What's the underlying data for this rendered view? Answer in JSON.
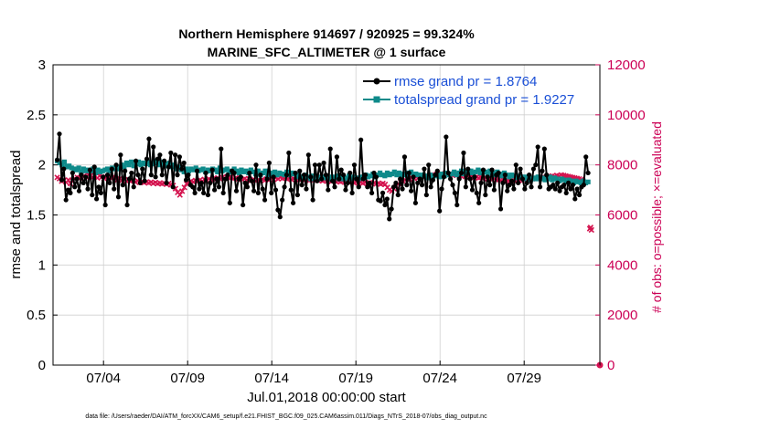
{
  "chart_data": {
    "type": "line",
    "title": "Northern Hemisphere 914697 / 920925 = 99.324%",
    "subtitle": "MARINE_SFC_ALTIMETER @ 1 surface",
    "xlabel": "Jul.01,2018 00:00:00 start",
    "ylabel": "rmse and totalspread",
    "y2label": "# of obs: o=possible; ×=evaluated",
    "xlim": [
      1,
      33.5
    ],
    "ylim": [
      0,
      3
    ],
    "y2lim": [
      0,
      12000
    ],
    "x_ticks": [
      4,
      9,
      14,
      19,
      24,
      29
    ],
    "x_tick_labels": [
      "07/04",
      "07/09",
      "07/14",
      "07/19",
      "07/24",
      "07/29"
    ],
    "y_ticks": [
      0,
      0.5,
      1,
      1.5,
      2,
      2.5,
      3
    ],
    "y_tick_labels": [
      "0",
      "0.5",
      "1",
      "1.5",
      "2",
      "2.5",
      "3"
    ],
    "y2_ticks": [
      0,
      2000,
      4000,
      6000,
      8000,
      10000,
      12000
    ],
    "y2_tick_labels": [
      "0",
      "2000",
      "4000",
      "6000",
      "8000",
      "10000",
      "12000"
    ],
    "grid": true,
    "legend_position": "top-right",
    "series": [
      {
        "name": "rmse grand pr = 1.8764",
        "color": "#000000",
        "marker": "filled-circle",
        "values": [
          2.05,
          2.31,
          1.85,
          1.96,
          1.65,
          1.75,
          1.72,
          1.92,
          1.78,
          1.86,
          1.74,
          1.9,
          1.82,
          1.88,
          1.76,
          1.95,
          1.7,
          1.98,
          1.66,
          1.78,
          1.72,
          1.88,
          1.6,
          1.9,
          1.82,
          1.96,
          1.76,
          2.0,
          1.68,
          2.1,
          1.8,
          1.94,
          1.6,
          1.86,
          1.92,
          1.78,
          2.04,
          1.9,
          1.82,
          1.96,
          1.84,
          2.06,
          2.26,
          1.9,
          2.18,
          1.88,
          2.06,
          2.1,
          1.9,
          2.04,
          1.82,
          1.98,
          2.12,
          1.78,
          2.1,
          1.9,
          2.08,
          1.96,
          2.02,
          1.85,
          1.9,
          1.8,
          1.78,
          1.72,
          1.94,
          1.76,
          1.82,
          1.72,
          1.92,
          1.7,
          1.82,
          1.95,
          1.75,
          1.86,
          1.78,
          2.16,
          1.72,
          1.86,
          1.9,
          1.62,
          1.94,
          1.92,
          1.74,
          1.86,
          1.88,
          1.6,
          1.82,
          1.78,
          1.92,
          1.84,
          1.74,
          2.0,
          1.72,
          1.9,
          1.76,
          1.65,
          1.86,
          2.02,
          1.72,
          1.88,
          1.75,
          1.55,
          1.48,
          1.65,
          1.78,
          1.9,
          2.12,
          1.75,
          1.62,
          1.92,
          1.7,
          1.94,
          1.8,
          1.9,
          1.76,
          2.1,
          1.88,
          1.65,
          2.0,
          1.84,
          2.0,
          1.86,
          2.02,
          1.9,
          1.75,
          2.16,
          1.84,
          1.78,
          2.08,
          1.86,
          1.95,
          1.9,
          1.75,
          1.82,
          1.92,
          1.72,
          2.0,
          1.86,
          1.78,
          2.25,
          1.86,
          1.9,
          1.78,
          1.82,
          1.72,
          1.92,
          1.88,
          1.65,
          1.64,
          1.72,
          1.6,
          1.66,
          1.46,
          1.56,
          1.78,
          1.82,
          1.7,
          1.86,
          1.76,
          2.08,
          1.8,
          1.92,
          1.74,
          1.88,
          1.62,
          1.82,
          1.86,
          1.8,
          1.96,
          1.7,
          2.0,
          1.78,
          1.85,
          1.9,
          1.94,
          1.54,
          1.76,
          1.88,
          2.28,
          1.92,
          1.86,
          1.8,
          1.72,
          1.6,
          1.86,
          1.92,
          2.12,
          1.78,
          1.96,
          1.86,
          1.75,
          1.88,
          1.72,
          1.62,
          1.82,
          1.95,
          1.7,
          1.88,
          1.8,
          1.95,
          1.75,
          1.9,
          1.92,
          1.56,
          1.82,
          1.9,
          1.74,
          1.8,
          1.84,
          1.76,
          2.0,
          1.82,
          1.96,
          1.86,
          1.76,
          1.82,
          1.9,
          1.78,
          1.96,
          2.0,
          2.18,
          1.78,
          1.94,
          2.16,
          1.9,
          1.76,
          1.78,
          1.8,
          1.76,
          1.82,
          1.74,
          1.78,
          1.8,
          1.72,
          1.82,
          1.76,
          1.8,
          1.66,
          1.76,
          1.7,
          1.78,
          1.8,
          2.08,
          1.92
        ]
      },
      {
        "name": "totalspread grand pr = 1.9227",
        "color": "#0e8a8a",
        "marker": "filled-square",
        "values": [
          2.04,
          2.02,
          2.0,
          2.03,
          1.98,
          1.99,
          1.97,
          1.96,
          1.95,
          1.97,
          1.93,
          1.96,
          1.94,
          1.95,
          1.94,
          1.96,
          1.92,
          1.95,
          1.93,
          1.94,
          1.95,
          1.96,
          1.94,
          1.97,
          1.96,
          1.98,
          1.96,
          2.0,
          1.98,
          2.02,
          2.0,
          2.03,
          1.99,
          2.01,
          2.03,
          2.0,
          2.02,
          2.01,
          2.03,
          2.0,
          2.01,
          2.04,
          2.02,
          2.0,
          2.03,
          1.99,
          2.01,
          2.02,
          1.98,
          2.0,
          1.96,
          1.98,
          1.95,
          1.93,
          1.96,
          1.94,
          1.96,
          1.95,
          1.97,
          1.94,
          1.95,
          1.96,
          1.93,
          1.95,
          1.94,
          1.96,
          1.95,
          1.93,
          1.97,
          1.94,
          1.95,
          1.96,
          1.93,
          1.94,
          1.96,
          1.94,
          1.92,
          1.95,
          1.93,
          1.94,
          1.92,
          1.95,
          1.93,
          1.91,
          1.94,
          1.9,
          1.92,
          1.94,
          1.9,
          1.92,
          1.91,
          1.93,
          1.9,
          1.92,
          1.91,
          1.9,
          1.93,
          1.9,
          1.92,
          1.91,
          1.88,
          1.9,
          1.88,
          1.87,
          1.9,
          1.88,
          1.86,
          1.89,
          1.87,
          1.88,
          1.86,
          1.88,
          1.87,
          1.89,
          1.86,
          1.88,
          1.87,
          1.89,
          1.86,
          1.88,
          1.86,
          1.87,
          1.89,
          1.86,
          1.88,
          1.87,
          1.86,
          1.88,
          1.87,
          1.9,
          1.88,
          1.89,
          1.91,
          1.88,
          1.9,
          1.92,
          1.9,
          1.89,
          1.92,
          1.9,
          1.91,
          1.93,
          1.9,
          1.92,
          1.9,
          1.91,
          1.9,
          1.92,
          1.93,
          1.9,
          1.91,
          1.9,
          1.88,
          1.9,
          1.89,
          1.87,
          1.9,
          1.88,
          1.89,
          1.9,
          1.88,
          1.91,
          1.89,
          1.92,
          1.9,
          1.91,
          1.93,
          1.9,
          1.92,
          1.94,
          1.91,
          1.93,
          1.92,
          1.94,
          1.92,
          1.93,
          1.95,
          1.92,
          1.94,
          1.93,
          1.91,
          1.94,
          1.92,
          1.9,
          1.93,
          1.91,
          1.89,
          1.92,
          1.9,
          1.88,
          1.9,
          1.89,
          1.87,
          1.89,
          1.88,
          1.86,
          1.88,
          1.87,
          1.85,
          1.87,
          1.86,
          1.88,
          1.86,
          1.87,
          1.85,
          1.86,
          1.88,
          1.85,
          1.87,
          1.86,
          1.84,
          1.86,
          1.85,
          1.83,
          1.85,
          1.84,
          1.82,
          1.84,
          1.83,
          1.82,
          1.84,
          1.82,
          1.83
        ]
      },
      {
        "name": "# of obs evaluated",
        "color": "#d4144f",
        "marker": "x",
        "axis": "right",
        "values": [
          7500,
          7450,
          7350,
          7380,
          7300,
          7400,
          7250,
          7350,
          7450,
          7500,
          7480,
          7620,
          7560,
          7520,
          7600,
          7580,
          7500,
          7550,
          7480,
          7560,
          7520,
          7460,
          7500,
          7440,
          7480,
          7520,
          7460,
          7400,
          7450,
          7380,
          7420,
          7360,
          7400,
          7350,
          7380,
          7320,
          7360,
          7300,
          7340,
          7290,
          7320,
          7280,
          7310,
          7260,
          7300,
          7250,
          7280,
          7240,
          7270,
          7230,
          7260,
          7200,
          7180,
          7050,
          6900,
          6800,
          6950,
          7100,
          7250,
          7300,
          7350,
          7320,
          7380,
          7360,
          7400,
          7350,
          7420,
          7380,
          7440,
          7400,
          7460,
          7420,
          7480,
          7440,
          7500,
          7460,
          7520,
          7480,
          7500,
          7450,
          7480,
          7430,
          7460,
          7420,
          7450,
          7400,
          7440,
          7380,
          7420,
          7360,
          7400,
          7360,
          7420,
          7380,
          7440,
          7400,
          7460,
          7420,
          7480,
          7440,
          7500,
          7460,
          7480,
          7440,
          7460,
          7420,
          7450,
          7410,
          7440,
          7400,
          7430,
          7390,
          7420,
          7380,
          7410,
          7390,
          7420,
          7380,
          7400,
          7360,
          7390,
          7350,
          7380,
          7340,
          7370,
          7330,
          7360,
          7320,
          7350,
          7310,
          7340,
          7300,
          7330,
          7290,
          7320,
          7280,
          7310,
          7270,
          7300,
          7260,
          7290,
          7250,
          7280,
          7240,
          7270,
          7230,
          7260,
          7220,
          7100,
          7000,
          6950,
          7050,
          7150,
          7250,
          7300,
          7350,
          7400,
          7450,
          7420,
          7480,
          7460,
          7520,
          7500,
          7540,
          7520,
          7560,
          7540,
          7580,
          7560,
          7600,
          7620,
          7580,
          7640,
          7600,
          7660,
          7620,
          7640,
          7600,
          7620,
          7580,
          7600,
          7560,
          7580,
          7540,
          7560,
          7520,
          7540,
          7500,
          7520,
          7480,
          7500,
          7460,
          7480,
          7440,
          7460,
          7420,
          7440,
          7400,
          7420,
          7380,
          7400,
          7360,
          7380,
          7350,
          7380,
          7360,
          7400,
          7380,
          7420,
          7400,
          7440,
          7420,
          7460,
          7440,
          7480,
          7460,
          7500,
          7480,
          7520,
          7500,
          7540,
          7520,
          7560,
          7540,
          7580,
          7560,
          7600,
          7580,
          7560,
          7540,
          7520,
          7500,
          7480,
          7460,
          7440,
          7420,
          5450,
          5500,
          5400
        ]
      }
    ],
    "right_axis_point": {
      "x": 33.0,
      "y2": 0,
      "marker": "filled-circle"
    }
  },
  "footer": {
    "data_file": "data file: /Users/raeder/DAI/ATM_forcXX/CAM6_setup/f.e21.FHIST_BGC.f09_025.CAM6assim.011/Diags_NTrS_2018-07/obs_diag_output.nc"
  },
  "colors": {
    "rmse": "#000000",
    "spread": "#0e8a8a",
    "obs": "#d4144f",
    "legend_text": "#1a4fd6",
    "grid": "#d0d0d0"
  }
}
